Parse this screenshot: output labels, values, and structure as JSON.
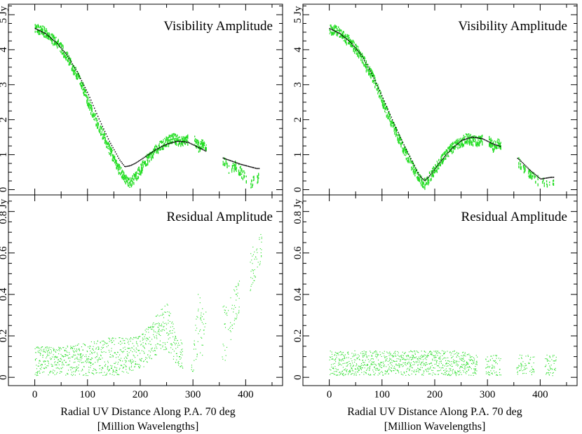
{
  "colors": {
    "fit": "#000000",
    "data": "#22dd22",
    "axis": "#000000"
  },
  "x_axis_label": {
    "line1": "Radial UV Distance Along P.A. 70 deg",
    "line2": "[Million Wavelengths]"
  },
  "chart_data": [
    {
      "id": "left-top",
      "type": "scatter",
      "title": "Visibility Amplitude",
      "unit": "Jy",
      "xlim": [
        -50,
        470
      ],
      "ylim": [
        -0.15,
        5.3
      ],
      "xticks": [
        0,
        100,
        200,
        300,
        400
      ],
      "yticks": [
        0,
        1,
        2,
        3,
        4,
        5
      ],
      "ytick_labels": [
        "0",
        "1",
        "2",
        "3",
        "4",
        "5 Jy"
      ],
      "series": [
        {
          "name": "model",
          "x": [
            0,
            20,
            40,
            60,
            80,
            100,
            120,
            140,
            160,
            170,
            180,
            190,
            210,
            230,
            250,
            270,
            290,
            310,
            330,
            360,
            390,
            420
          ],
          "y": [
            4.6,
            4.45,
            4.2,
            3.85,
            3.35,
            2.75,
            2.05,
            1.4,
            0.85,
            0.65,
            0.68,
            0.75,
            0.95,
            1.15,
            1.3,
            1.38,
            1.35,
            1.2,
            1.05,
            0.88,
            0.72,
            0.6
          ]
        },
        {
          "name": "data",
          "x": [
            2,
            10,
            20,
            30,
            40,
            50,
            60,
            70,
            80,
            90,
            100,
            110,
            120,
            130,
            140,
            150,
            160,
            170,
            175,
            180,
            185,
            190,
            200,
            210,
            220,
            230,
            240,
            250,
            260,
            270,
            280,
            300,
            310,
            320,
            360,
            365,
            380,
            395,
            400,
            410,
            420
          ],
          "y": [
            4.6,
            4.6,
            4.5,
            4.35,
            4.25,
            4.05,
            3.85,
            3.55,
            3.3,
            2.95,
            2.55,
            2.2,
            1.85,
            1.55,
            1.2,
            0.9,
            0.6,
            0.35,
            0.25,
            0.2,
            0.3,
            0.4,
            0.6,
            0.85,
            1.0,
            1.2,
            1.3,
            1.4,
            1.5,
            1.45,
            1.4,
            1.5,
            1.25,
            1.35,
            0.8,
            0.6,
            0.7,
            0.45,
            0.3,
            0.2,
            0.35
          ]
        }
      ]
    },
    {
      "id": "left-bottom",
      "type": "scatter",
      "title": "Residual Amplitude",
      "unit": "Jy",
      "xlim": [
        -50,
        470
      ],
      "ylim": [
        -0.04,
        0.88
      ],
      "xticks": [
        0,
        100,
        200,
        300,
        400
      ],
      "yticks": [
        0,
        0.2,
        0.4,
        0.6,
        0.8
      ],
      "ytick_labels": [
        "0",
        "0.2",
        "0.4",
        "0.6",
        "0.8 Jy"
      ],
      "series": [
        {
          "name": "residual",
          "x": [
            0,
            50,
            100,
            150,
            200,
            230,
            250,
            270,
            300,
            310,
            320,
            365,
            375,
            385,
            415,
            425
          ],
          "y": [
            0.08,
            0.08,
            0.09,
            0.1,
            0.12,
            0.2,
            0.25,
            0.12,
            0.08,
            0.28,
            0.2,
            0.22,
            0.32,
            0.38,
            0.56,
            0.62
          ],
          "spread": [
            0.07,
            0.07,
            0.08,
            0.1,
            0.08,
            0.1,
            0.12,
            0.08,
            0.05,
            0.15,
            0.12,
            0.14,
            0.1,
            0.1,
            0.1,
            0.08
          ]
        }
      ]
    },
    {
      "id": "right-top",
      "type": "scatter",
      "title": "Visibility Amplitude",
      "unit": "Jy",
      "xlim": [
        -50,
        470
      ],
      "ylim": [
        -0.15,
        5.3
      ],
      "xticks": [
        0,
        100,
        200,
        300,
        400
      ],
      "yticks": [
        0,
        1,
        2,
        3,
        4,
        5
      ],
      "ytick_labels": [
        "0",
        "1",
        "2",
        "3",
        "4",
        "5 Jy"
      ],
      "series": [
        {
          "name": "model",
          "x": [
            0,
            20,
            40,
            60,
            80,
            100,
            120,
            140,
            160,
            170,
            180,
            190,
            210,
            230,
            250,
            270,
            290,
            310,
            330,
            360,
            380,
            400,
            420
          ],
          "y": [
            4.6,
            4.45,
            4.2,
            3.85,
            3.3,
            2.65,
            1.95,
            1.3,
            0.7,
            0.4,
            0.25,
            0.4,
            0.8,
            1.15,
            1.4,
            1.5,
            1.45,
            1.3,
            1.2,
            0.85,
            0.55,
            0.3,
            0.35
          ]
        },
        {
          "name": "data",
          "x": [
            2,
            10,
            20,
            30,
            40,
            50,
            60,
            70,
            80,
            90,
            100,
            110,
            120,
            130,
            140,
            150,
            160,
            170,
            175,
            180,
            185,
            190,
            200,
            210,
            220,
            230,
            240,
            250,
            260,
            270,
            280,
            300,
            310,
            320,
            360,
            365,
            380,
            395,
            400,
            410,
            420
          ],
          "y": [
            4.6,
            4.6,
            4.5,
            4.35,
            4.25,
            4.05,
            3.85,
            3.55,
            3.3,
            2.95,
            2.55,
            2.2,
            1.85,
            1.55,
            1.2,
            0.9,
            0.6,
            0.35,
            0.25,
            0.2,
            0.3,
            0.4,
            0.6,
            0.85,
            1.0,
            1.2,
            1.3,
            1.4,
            1.5,
            1.45,
            1.4,
            1.5,
            1.25,
            1.35,
            0.8,
            0.6,
            0.5,
            0.3,
            0.25,
            0.2,
            0.3
          ]
        }
      ]
    },
    {
      "id": "right-bottom",
      "type": "scatter",
      "title": "Residual Amplitude",
      "unit": "Jy",
      "xlim": [
        -50,
        470
      ],
      "ylim": [
        -0.04,
        0.88
      ],
      "xticks": [
        0,
        100,
        200,
        300,
        400
      ],
      "yticks": [
        0,
        0.2,
        0.4,
        0.6,
        0.8
      ],
      "ytick_labels": [
        "0",
        "0.2",
        "0.4",
        "0.6",
        "0.8 Jy"
      ],
      "series": [
        {
          "name": "residual",
          "x": [
            0,
            50,
            100,
            150,
            200,
            230,
            250,
            270,
            300,
            310,
            320,
            365,
            375,
            385,
            415,
            425
          ],
          "y": [
            0.07,
            0.07,
            0.07,
            0.07,
            0.07,
            0.07,
            0.07,
            0.06,
            0.06,
            0.06,
            0.06,
            0.06,
            0.06,
            0.06,
            0.06,
            0.06
          ],
          "spread": [
            0.06,
            0.06,
            0.06,
            0.06,
            0.06,
            0.06,
            0.06,
            0.05,
            0.05,
            0.05,
            0.05,
            0.05,
            0.05,
            0.05,
            0.05,
            0.05
          ]
        }
      ]
    }
  ]
}
